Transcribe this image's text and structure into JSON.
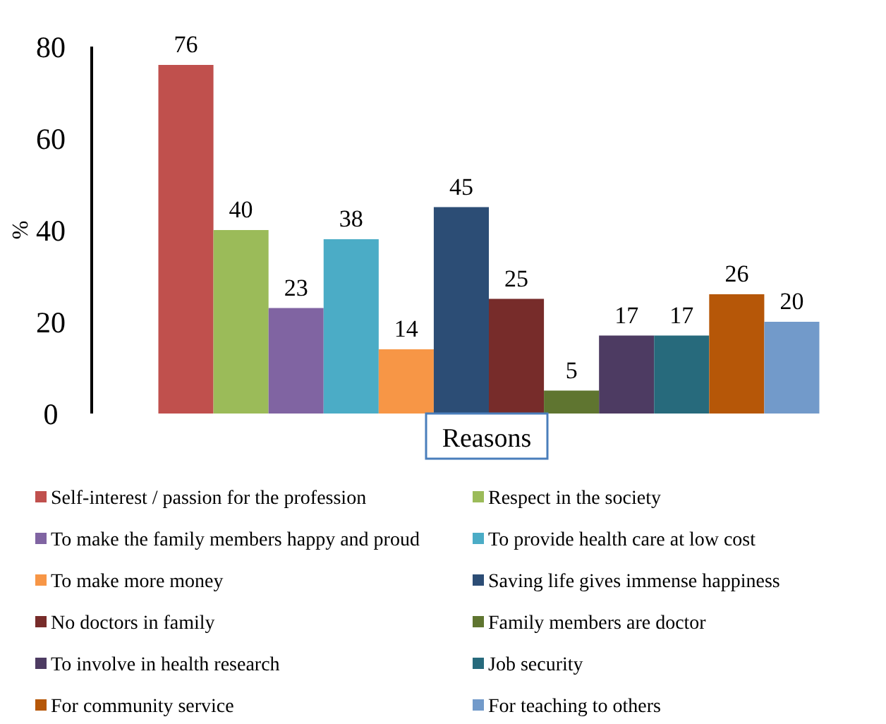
{
  "chart_data": {
    "type": "bar",
    "xlabel": "Reasons",
    "ylabel": "%",
    "categories": [
      null
    ],
    "ylim": [
      0,
      80
    ],
    "yticks": [
      0,
      20,
      40,
      60,
      80
    ],
    "grid": false,
    "legend": "bottom",
    "data_labels": true,
    "series": [
      {
        "name": "Self-interest / passion for the profession",
        "color": "#c0504d",
        "values": [
          76
        ]
      },
      {
        "name": "Respect in the society",
        "color": "#9bbb59",
        "values": [
          40
        ]
      },
      {
        "name": "To make the family members happy and proud",
        "color": "#8064a2",
        "values": [
          23
        ]
      },
      {
        "name": "To provide health care at low cost",
        "color": "#4bacc6",
        "values": [
          38
        ]
      },
      {
        "name": "To make more money",
        "color": "#f79646",
        "values": [
          14
        ]
      },
      {
        "name": "Saving life gives immense happiness",
        "color": "#2c4d75",
        "values": [
          45
        ]
      },
      {
        "name": "No doctors in family",
        "color": "#772c2a",
        "values": [
          25
        ]
      },
      {
        "name": "Family members are doctor",
        "color": "#5f7530",
        "values": [
          5
        ]
      },
      {
        "name": "To involve in health research",
        "color": "#4d3b62",
        "values": [
          17
        ]
      },
      {
        "name": "Job security",
        "color": "#276a7c",
        "values": [
          17
        ]
      },
      {
        "name": "For community service",
        "color": "#b65708",
        "values": [
          26
        ]
      },
      {
        "name": "For teaching to others",
        "color": "#729aca",
        "values": [
          20
        ]
      }
    ]
  }
}
